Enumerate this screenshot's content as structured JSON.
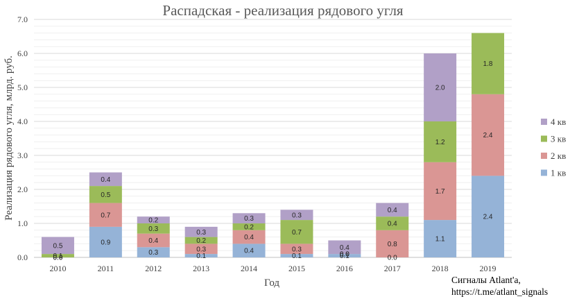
{
  "chart_data": {
    "type": "bar",
    "stacked": true,
    "title": "Распадская - реализация рядового угля",
    "xlabel": "Год",
    "ylabel": "Реализация рядового угля, млрд. руб.",
    "ylim": [
      0,
      7
    ],
    "yticks": [
      "0.0",
      "1.0",
      "2.0",
      "3.0",
      "4.0",
      "5.0",
      "6.0",
      "7.0"
    ],
    "grid": true,
    "legend_position": "right",
    "categories": [
      "2010",
      "2011",
      "2012",
      "2013",
      "2014",
      "2015",
      "2016",
      "2017",
      "2018",
      "2019"
    ],
    "series": [
      {
        "name": "1 кв",
        "color": "#95b3d7",
        "values": [
          0.0,
          0.9,
          0.3,
          0.1,
          0.4,
          0.1,
          0.1,
          0.0,
          1.1,
          2.4
        ]
      },
      {
        "name": "2 кв",
        "color": "#da9694",
        "values": [
          0.0,
          0.7,
          0.4,
          0.3,
          0.4,
          0.3,
          0.0,
          0.8,
          1.7,
          2.4
        ]
      },
      {
        "name": "3 кв",
        "color": "#9bbb59",
        "values": [
          0.1,
          0.5,
          0.3,
          0.2,
          0.2,
          0.7,
          0.0,
          0.4,
          1.2,
          1.8
        ]
      },
      {
        "name": "4 кв",
        "color": "#b1a0c7",
        "values": [
          0.5,
          0.4,
          0.2,
          0.3,
          0.3,
          0.3,
          0.4,
          0.4,
          2.0,
          null
        ]
      }
    ]
  },
  "caption": {
    "line1": "Сигналы Atlant'a,",
    "line2": "https://t.me/atlant_signals"
  }
}
